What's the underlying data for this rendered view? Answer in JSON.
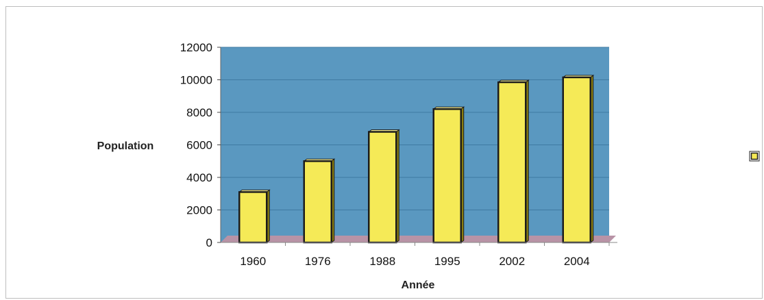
{
  "chart_data": {
    "type": "bar",
    "categories": [
      "1960",
      "1976",
      "1988",
      "1995",
      "2002",
      "2004"
    ],
    "series": [
      {
        "values": [
          3100,
          5000,
          6800,
          8200,
          9850,
          10150
        ]
      }
    ],
    "xlabel": "Année",
    "ylabel": "Population",
    "ylim": [
      0,
      12000
    ],
    "yticks": [
      0,
      2000,
      4000,
      6000,
      8000,
      10000,
      12000
    ],
    "grid": true,
    "legend": "right",
    "colors": {
      "plot_background": "#5a98c0",
      "floor": "#b893a6",
      "bar_fill": "#f5ea57",
      "bar_shadow": "#8a7d10",
      "bar_outline": "#1b1b1b"
    }
  }
}
